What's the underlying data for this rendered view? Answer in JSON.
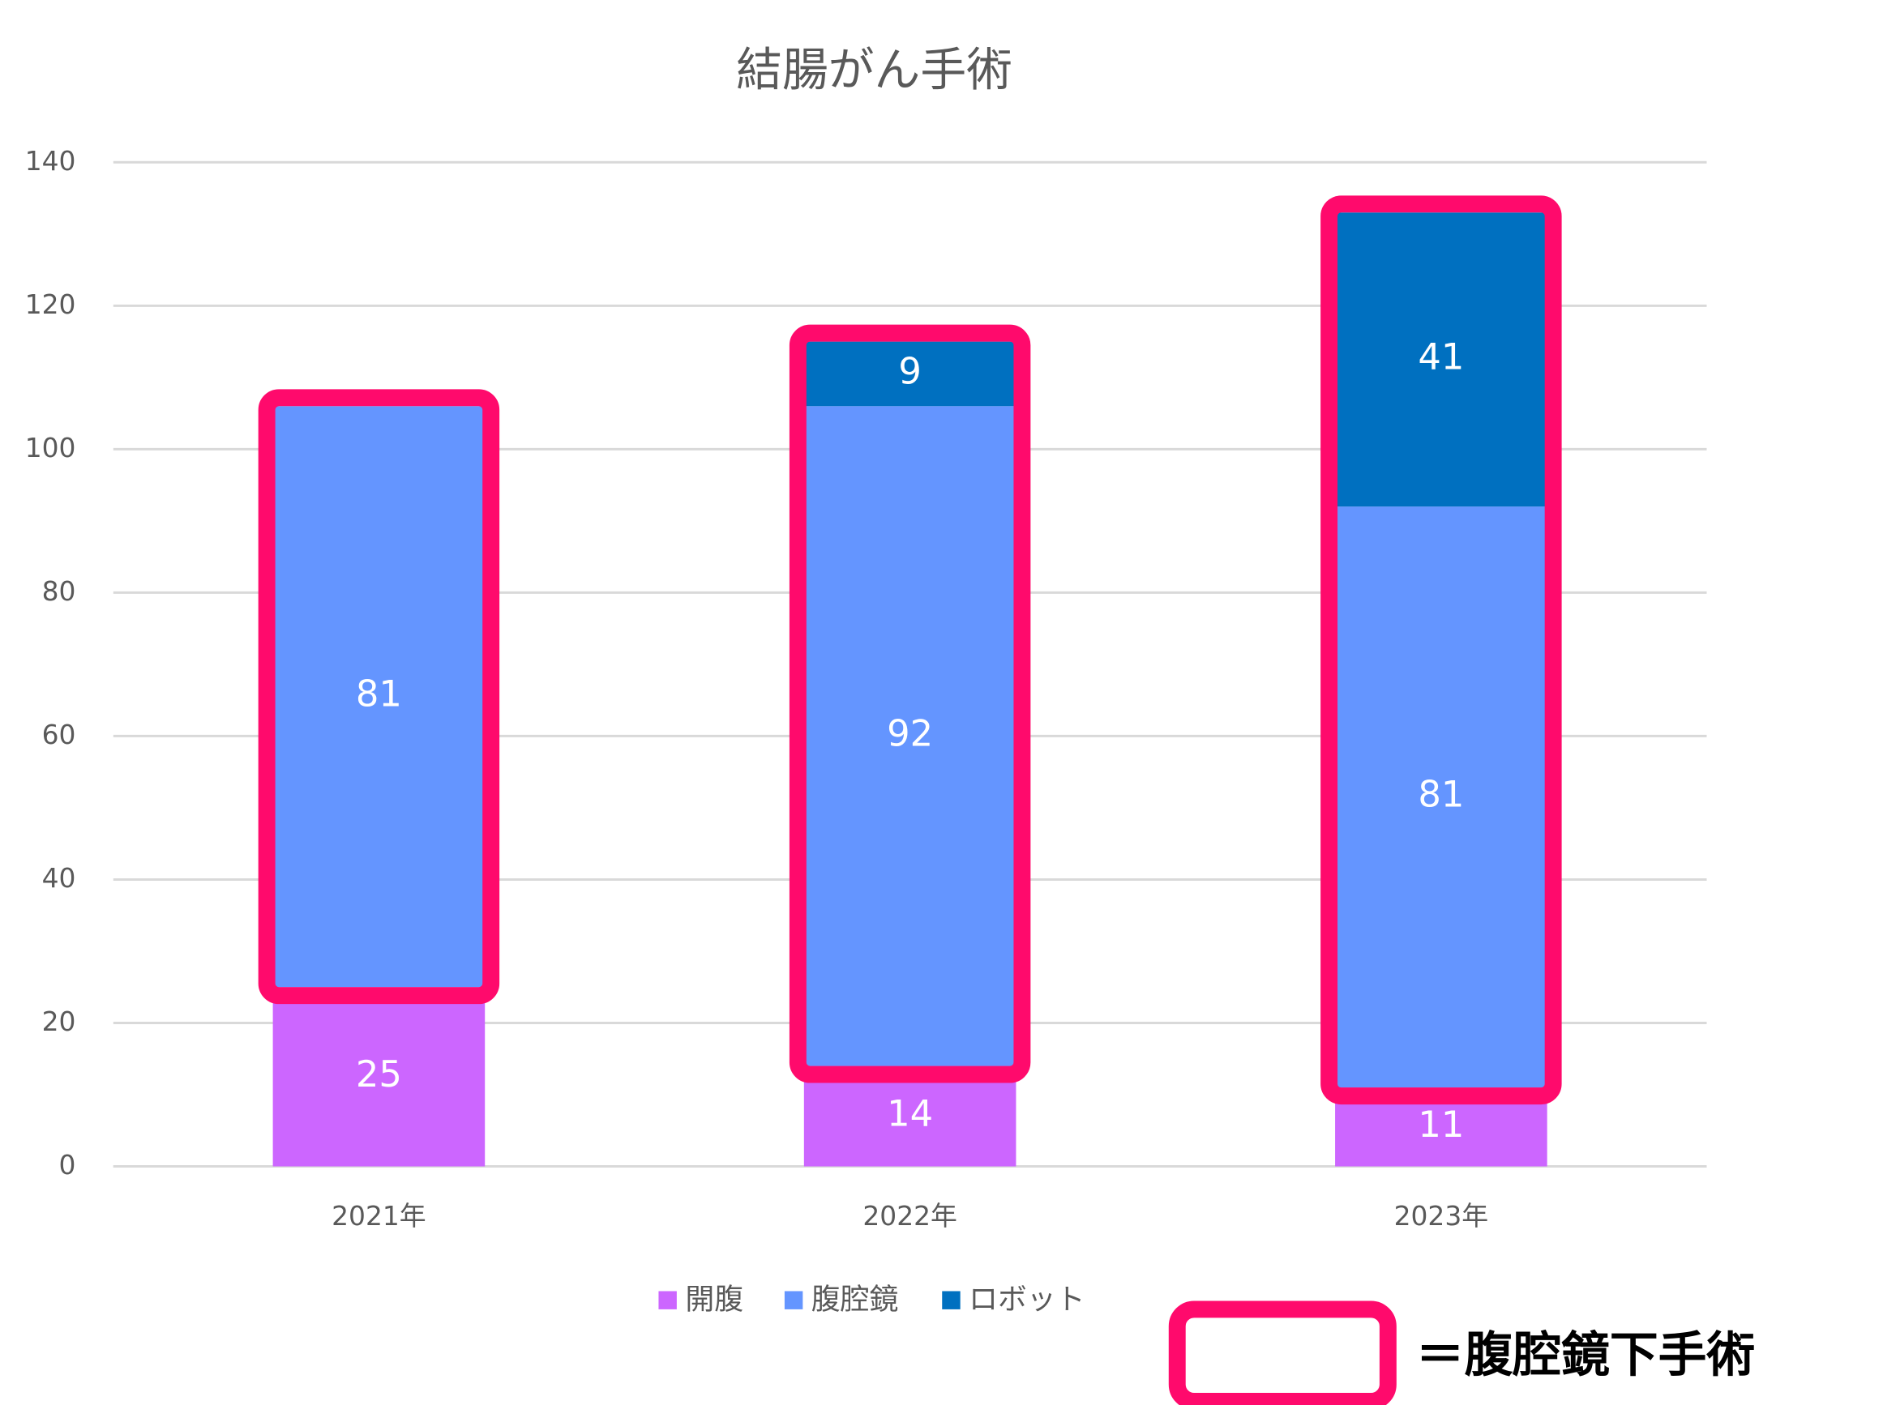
{
  "chart_data": {
    "type": "bar",
    "stacked": true,
    "title": "結腸がん手術",
    "categories": [
      "2021年",
      "2022年",
      "2023年"
    ],
    "series": [
      {
        "name": "開腹",
        "color": "#cc66ff",
        "values": [
          25,
          14,
          11
        ]
      },
      {
        "name": "腹腔鏡",
        "color": "#6495ff",
        "values": [
          81,
          92,
          81
        ]
      },
      {
        "name": "ロボット",
        "color": "#0070c0",
        "values": [
          null,
          9,
          41
        ]
      }
    ],
    "ylim": [
      0,
      140
    ],
    "yticks": [
      0,
      20,
      40,
      60,
      80,
      100,
      120,
      140
    ],
    "grid": true,
    "legend": "bottom",
    "highlight": {
      "color": "#ff0a6c",
      "label": "＝腹腔鏡下手術"
    }
  }
}
